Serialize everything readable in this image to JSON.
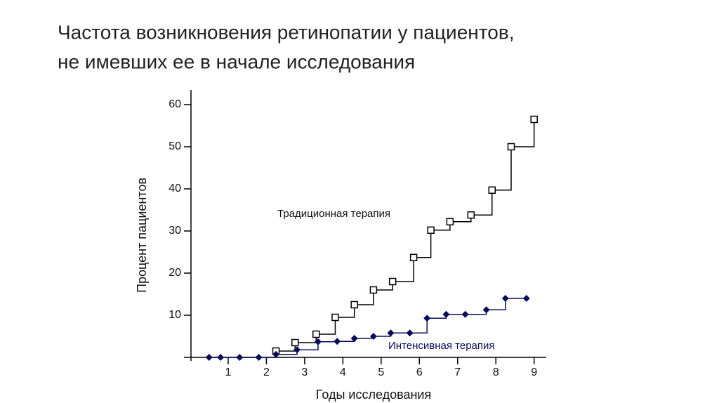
{
  "chart_data": {
    "type": "step",
    "title": [
      "Частота возникновения ретинопатии у пациентов,",
      "не имевших ее в начале исследования"
    ],
    "x_label": "Годы исследования",
    "y_label": "Процент пациентов",
    "xlim": [
      0,
      9.3
    ],
    "ylim": [
      0,
      63.5
    ],
    "xticks": [
      1,
      2,
      3,
      4,
      5,
      6,
      7,
      8,
      9
    ],
    "yticks": [
      10,
      20,
      30,
      40,
      50,
      60
    ],
    "series": [
      {
        "name": "Традиционная терапия",
        "color": "#000000",
        "marker": "square",
        "x": [
          2.25,
          2.75,
          3.3,
          3.8,
          4.3,
          4.8,
          5.3,
          5.85,
          6.3,
          6.8,
          7.35,
          7.9,
          8.4,
          9.0
        ],
        "values": [
          1.5,
          3.5,
          5.5,
          9.5,
          12.5,
          16,
          18,
          23.7,
          30.2,
          32.2,
          33.8,
          39.7,
          50,
          56.5
        ]
      },
      {
        "name": "Интенсивная терапия",
        "color": "#0a0a5a",
        "marker": "diamond",
        "x": [
          0.5,
          0.8,
          1.3,
          1.8,
          2.25,
          2.8,
          3.35,
          3.85,
          4.3,
          4.8,
          5.25,
          5.75,
          6.2,
          6.7,
          7.2,
          7.75,
          8.25,
          8.8
        ],
        "values": [
          0,
          0,
          0,
          0,
          0.7,
          1.8,
          3.7,
          3.8,
          4.5,
          5,
          5.8,
          5.8,
          9.3,
          10.2,
          10.2,
          11.3,
          14,
          14
        ]
      }
    ]
  }
}
